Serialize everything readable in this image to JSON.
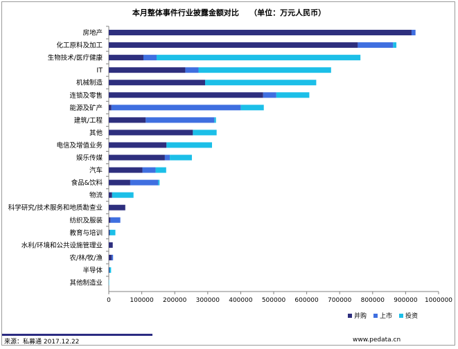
{
  "title": "本月整体事件行业披露金额对比    （单位：万元人民币）",
  "footer": {
    "source": "来源：私募通   2017.12.22",
    "url": "www.pedata.cn"
  },
  "colors": {
    "并购": "#2e2f7e",
    "上市": "#3f6fe0",
    "投资": "#1cbfe8"
  },
  "chart_data": {
    "type": "bar",
    "orientation": "horizontal",
    "stacked": true,
    "categories": [
      "房地产",
      "化工原料及加工",
      "生物技术/医疗健康",
      "IT",
      "机械制造",
      "连锁及零售",
      "能源及矿产",
      "建筑/工程",
      "其他",
      "电信及增值业务",
      "娱乐传媒",
      "汽车",
      "食品&饮料",
      "物流",
      "科学研究/技术服务和地质勘查业",
      "纺织及服装",
      "教育与培训",
      "水利/环境和公共设施管理业",
      "农/林/牧/渔",
      "半导体",
      "其他制造业"
    ],
    "series": [
      {
        "name": "并购",
        "values": [
          918000,
          755000,
          105000,
          232000,
          292000,
          468000,
          8000,
          112000,
          255000,
          175000,
          170000,
          102000,
          65000,
          10000,
          50000,
          5000,
          3000,
          12000,
          9000,
          2000,
          0
        ]
      },
      {
        "name": "上市",
        "values": [
          12000,
          107000,
          40000,
          40000,
          0,
          40000,
          392000,
          208000,
          0,
          0,
          15000,
          40000,
          85000,
          0,
          0,
          30000,
          0,
          0,
          4000,
          0,
          0
        ]
      },
      {
        "name": "投资",
        "values": [
          0,
          10000,
          618000,
          402000,
          337000,
          100000,
          70000,
          5000,
          72000,
          138000,
          67000,
          32000,
          4000,
          65000,
          0,
          0,
          17000,
          0,
          0,
          5000,
          1000
        ]
      }
    ],
    "xlim": [
      0,
      1000000
    ],
    "xticks": [
      0,
      100000,
      200000,
      300000,
      400000,
      500000,
      600000,
      700000,
      800000,
      900000,
      1000000
    ],
    "legend": {
      "position": "bottom-right",
      "entries": [
        "并购",
        "上市",
        "投资"
      ]
    },
    "grid": false
  }
}
